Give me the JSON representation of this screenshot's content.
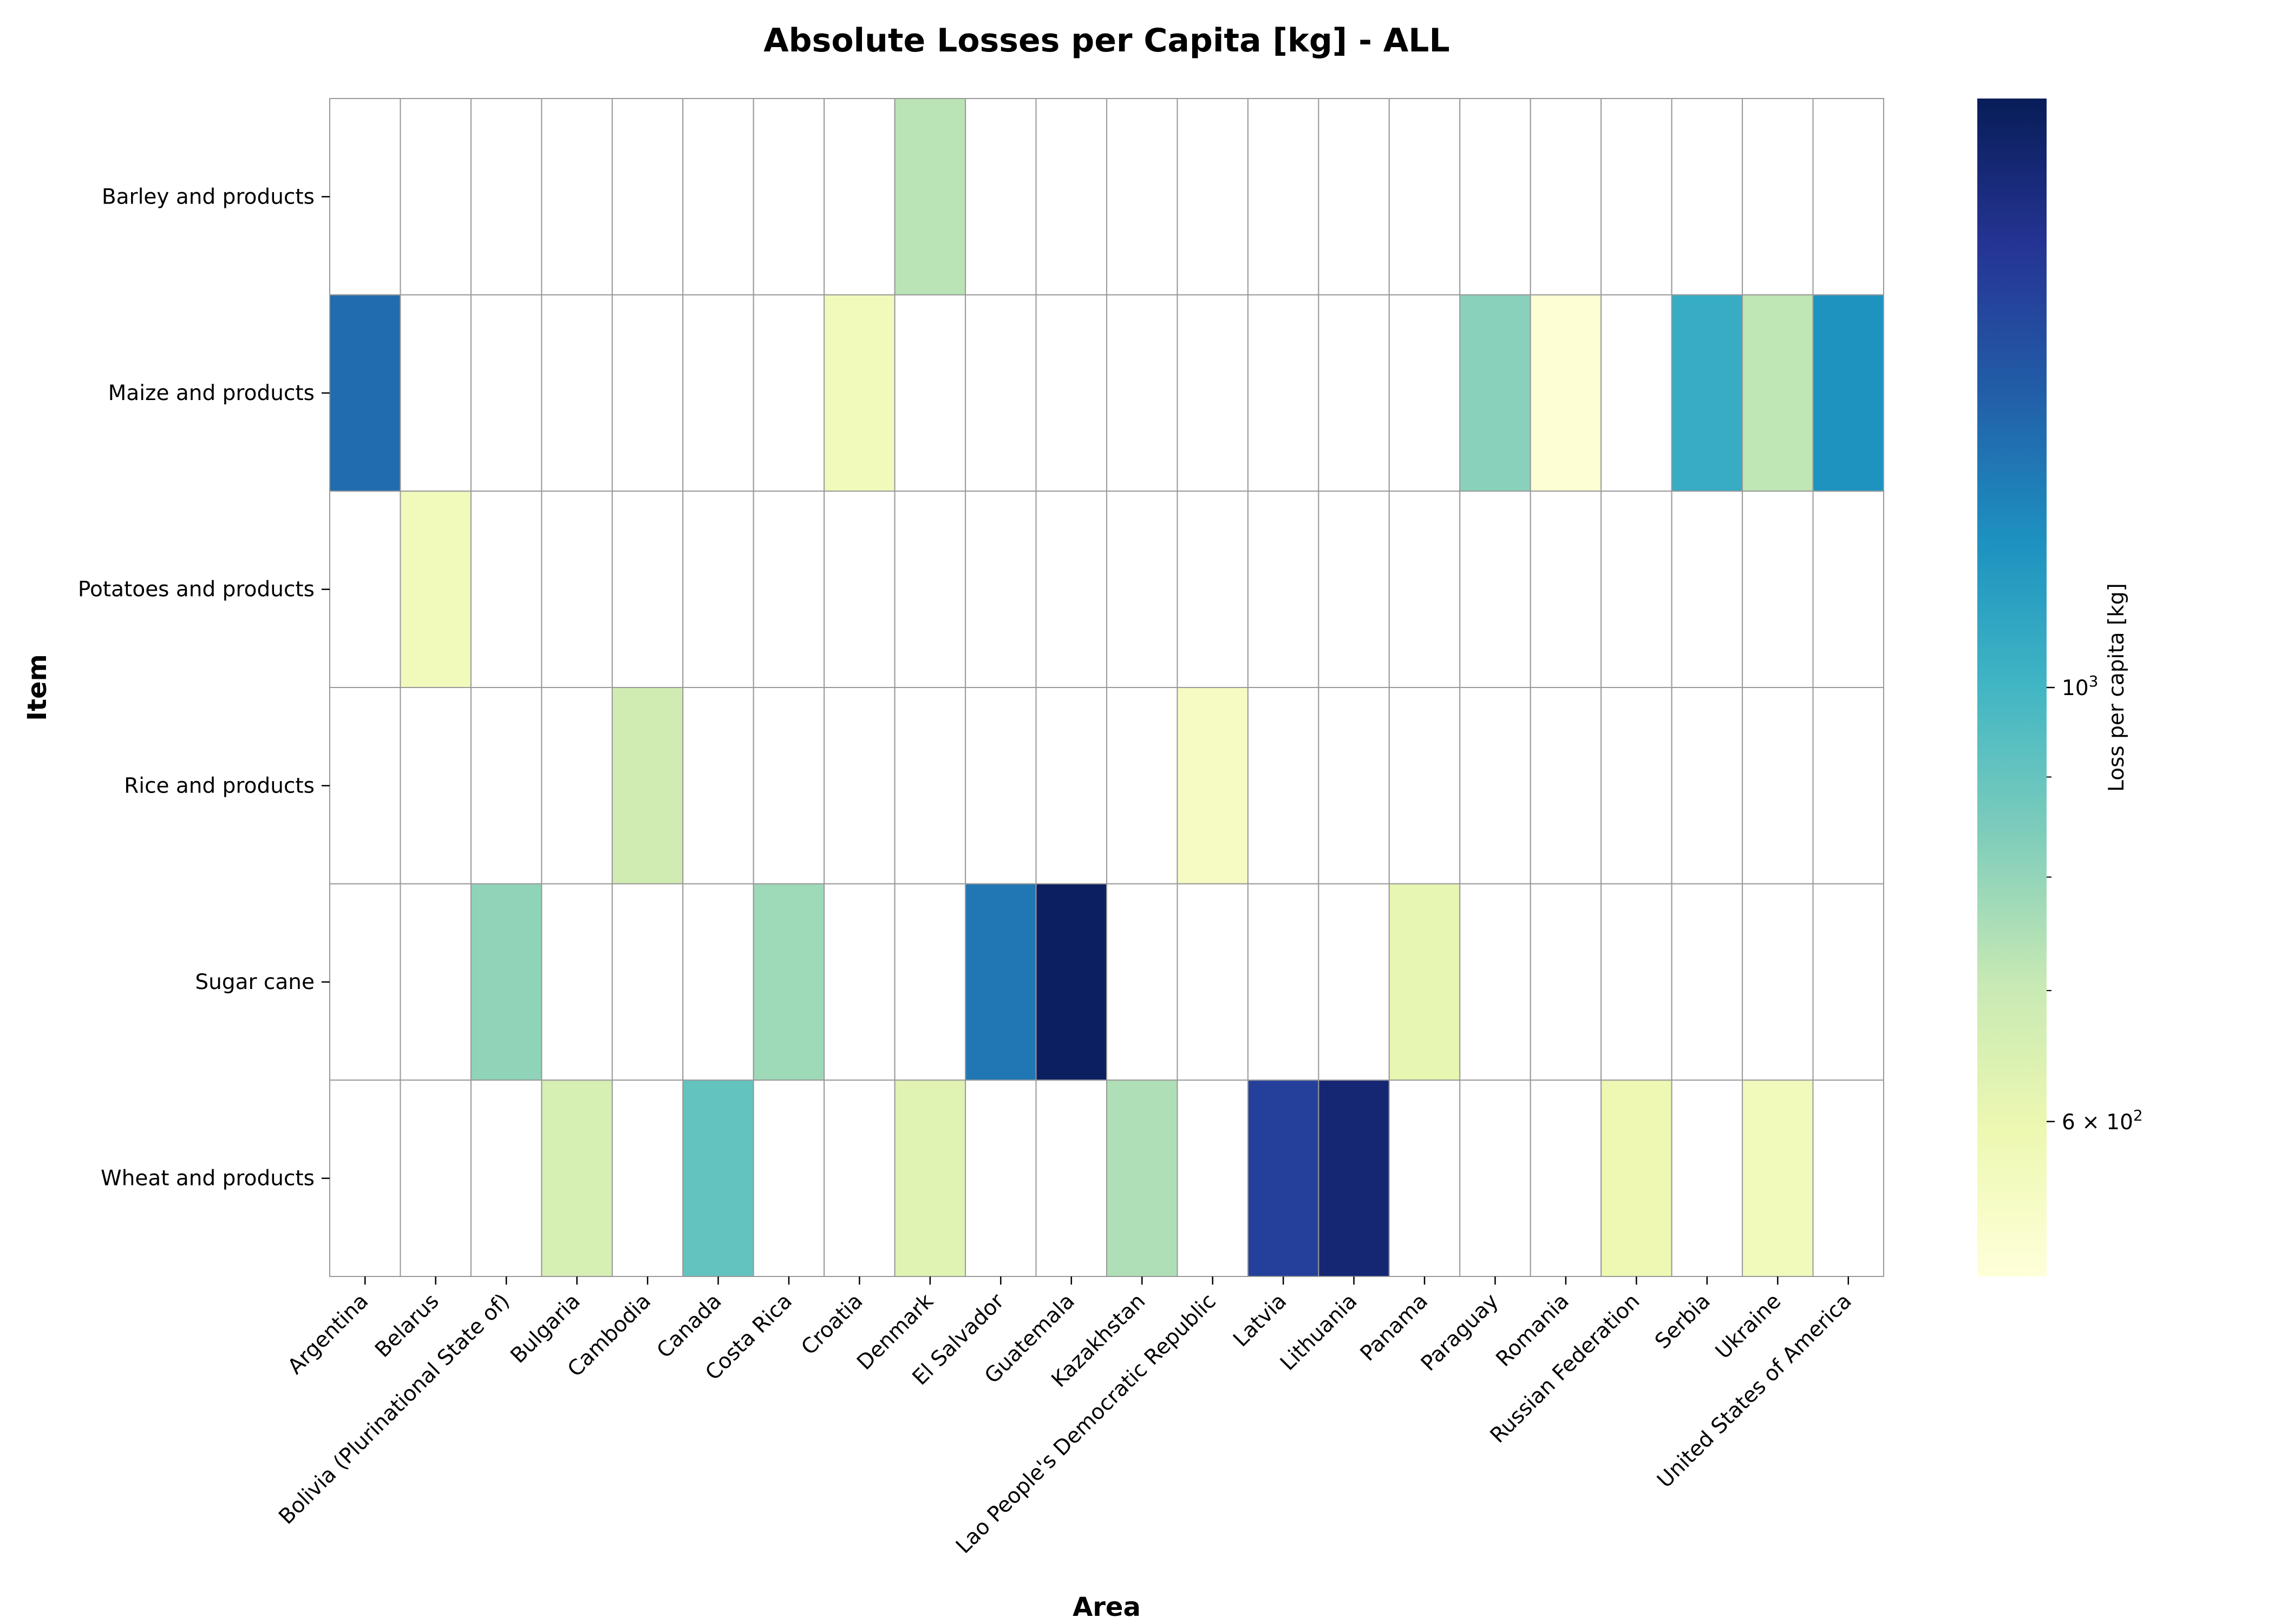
{
  "chart_data": {
    "type": "heatmap",
    "title": "Absolute Losses per Capita [kg] - ALL",
    "xlabel": "Area",
    "ylabel": "Item",
    "x": [
      "Argentina",
      "Belarus",
      "Bolivia (Plurinational State of)",
      "Bulgaria",
      "Cambodia",
      "Canada",
      "Costa Rica",
      "Croatia",
      "Denmark",
      "El Salvador",
      "Guatemala",
      "Kazakhstan",
      "Lao People's Democratic Republic",
      "Latvia",
      "Lithuania",
      "Panama",
      "Paraguay",
      "Romania",
      "Russian Federation",
      "Serbia",
      "Ukraine",
      "United States of America"
    ],
    "y": [
      "Barley and products",
      "Maize and products",
      "Potatoes and products",
      "Rice and products",
      "Sugar cane",
      "Wheat and products"
    ],
    "values": [
      [
        null,
        null,
        null,
        null,
        null,
        null,
        null,
        null,
        730,
        null,
        null,
        null,
        null,
        null,
        null,
        null,
        null,
        null,
        null,
        null,
        null,
        null
      ],
      [
        1350,
        null,
        null,
        null,
        null,
        null,
        null,
        570,
        null,
        null,
        null,
        null,
        null,
        null,
        null,
        null,
        820,
        510,
        null,
        1050,
        720,
        1180
      ],
      [
        null,
        570,
        null,
        null,
        null,
        null,
        null,
        null,
        null,
        null,
        null,
        null,
        null,
        null,
        null,
        null,
        null,
        null,
        null,
        null,
        null,
        null
      ],
      [
        null,
        null,
        null,
        null,
        680,
        null,
        null,
        null,
        null,
        null,
        null,
        null,
        550,
        null,
        null,
        null,
        null,
        null,
        null,
        null,
        null,
        null
      ],
      [
        null,
        null,
        810,
        null,
        null,
        null,
        780,
        null,
        null,
        1300,
        1950,
        null,
        null,
        null,
        null,
        610,
        null,
        null,
        null,
        null,
        null,
        null
      ],
      [
        null,
        null,
        null,
        660,
        null,
        910,
        null,
        null,
        630,
        null,
        null,
        750,
        null,
        1600,
        1850,
        null,
        null,
        null,
        590,
        null,
        570,
        null
      ]
    ],
    "scale": "log",
    "vmin": 500,
    "vmax": 2000,
    "colormap": "YlGnBu",
    "colorbar": {
      "label": "Loss per capita [kg]",
      "ticks": [
        {
          "value": 600,
          "base": "6 × 10",
          "exp": "2"
        },
        {
          "value": 1000,
          "base": "10",
          "exp": "3"
        }
      ],
      "minor_ticks": [
        700,
        800,
        900
      ]
    },
    "grid": true
  }
}
